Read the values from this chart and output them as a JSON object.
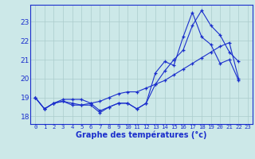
{
  "title": "Graphe des températures (°c)",
  "background_color": "#cce8e8",
  "grid_color": "#aacccc",
  "line_color": "#1a2ecc",
  "x_labels": [
    "0",
    "1",
    "2",
    "3",
    "4",
    "5",
    "6",
    "7",
    "8",
    "9",
    "10",
    "11",
    "12",
    "13",
    "14",
    "15",
    "16",
    "17",
    "18",
    "19",
    "20",
    "21",
    "22",
    "23"
  ],
  "ylim": [
    17.6,
    23.9
  ],
  "yticks": [
    18,
    19,
    20,
    21,
    22,
    23
  ],
  "series1": [
    19.0,
    18.4,
    18.7,
    18.8,
    18.6,
    18.6,
    18.6,
    18.2,
    18.5,
    18.7,
    18.7,
    18.4,
    18.7,
    20.3,
    20.9,
    20.7,
    22.2,
    23.5,
    22.2,
    21.8,
    20.8,
    21.0,
    19.9,
    null
  ],
  "series2": [
    19.0,
    18.4,
    18.7,
    18.8,
    18.7,
    18.6,
    18.7,
    18.3,
    18.5,
    18.7,
    18.7,
    18.4,
    18.7,
    19.7,
    20.4,
    21.0,
    21.5,
    22.8,
    23.6,
    22.8,
    22.3,
    21.4,
    20.9,
    null
  ],
  "series3": [
    19.0,
    18.4,
    18.7,
    18.9,
    18.9,
    18.9,
    18.7,
    18.8,
    19.0,
    19.2,
    19.3,
    19.3,
    19.5,
    19.7,
    19.9,
    20.2,
    20.5,
    20.8,
    21.1,
    21.4,
    21.7,
    21.9,
    20.0,
    null
  ]
}
